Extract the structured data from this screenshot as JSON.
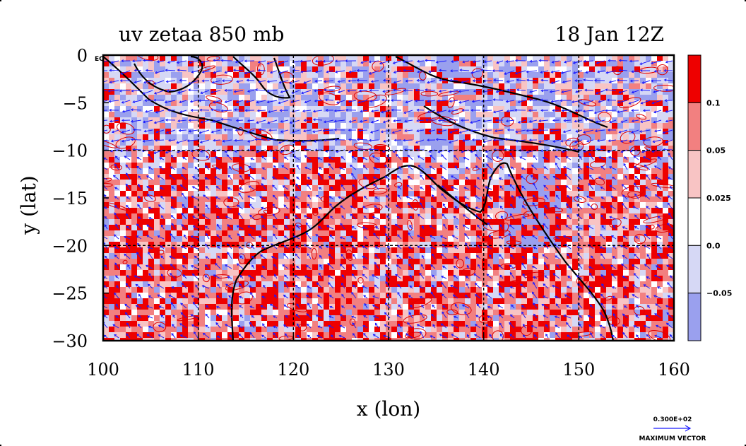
{
  "chart_data": {
    "type": "heatmap",
    "title_left": "uv zetaa 850 mb",
    "title_right": "18 Jan 12Z",
    "xlabel": "x (lon)",
    "ylabel": "y (lat)",
    "xlim": [
      100,
      160
    ],
    "ylim": [
      -30,
      0
    ],
    "x_ticks": [
      "100",
      "110",
      "120",
      "130",
      "140",
      "150",
      "160"
    ],
    "y_ticks": [
      "0",
      "−5",
      "−10",
      "−15",
      "−20",
      "−25",
      "−30"
    ],
    "x_tick_values": [
      100,
      110,
      120,
      130,
      140,
      150,
      160
    ],
    "y_tick_values": [
      0,
      -5,
      -10,
      -15,
      -20,
      -25,
      -30
    ],
    "eq_label": "EQ",
    "grid_lon": [
      110,
      120,
      130,
      140,
      150
    ],
    "grid_lat": [
      -10,
      -20
    ],
    "colorbar": {
      "labels": [
        "0.1",
        "0.05",
        "0.025",
        "0.0",
        "−0.05"
      ],
      "colors": [
        "#ee0000",
        "#f28080",
        "#f8c4c4",
        "#ffffff",
        "#d6d8f5",
        "#9aa0ee"
      ]
    },
    "vector_key": {
      "value_label": "0.300E+02",
      "caption": "MAXIMUM VECTOR"
    },
    "colors": {
      "strong_pos": "#ee0000",
      "mid_pos": "#f28080",
      "weak_pos": "#f8c4c4",
      "weak_neg": "#d6d8f5",
      "strong_neg": "#9aa0ee",
      "vectors": "#1a1aff",
      "contour_line": "#dd0000",
      "coastline": "#000000"
    }
  }
}
